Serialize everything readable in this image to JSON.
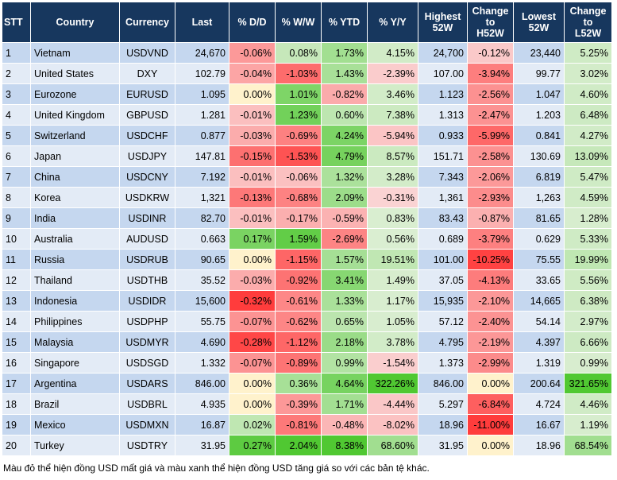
{
  "table": {
    "headers": [
      "STT",
      "Country",
      "Currency",
      "Last",
      "% D/D",
      "% W/W",
      "% YTD",
      "% Y/Y",
      "Highest\n52W",
      "Change\nto\nH52W",
      "Lowest\n52W",
      "Change\nto\nL52W"
    ],
    "rows": [
      [
        "1",
        "Vietnam",
        "USDVND",
        "24,670",
        "-0.06%",
        "0.08%",
        "1.73%",
        "4.15%",
        "24,700",
        "-0.12%",
        "23,440",
        "5.25%"
      ],
      [
        "2",
        "United States",
        "DXY",
        "102.79",
        "-0.04%",
        "-1.03%",
        "1.43%",
        "-2.39%",
        "107.00",
        "-3.94%",
        "99.77",
        "3.02%"
      ],
      [
        "3",
        "Eurozone",
        "EURUSD",
        "1.095",
        "0.00%",
        "1.01%",
        "-0.82%",
        "3.46%",
        "1.123",
        "-2.56%",
        "1.047",
        "4.60%"
      ],
      [
        "4",
        "United Kingdom",
        "GBPUSD",
        "1.281",
        "-0.01%",
        "1.23%",
        "0.60%",
        "7.38%",
        "1.313",
        "-2.47%",
        "1.203",
        "6.48%"
      ],
      [
        "5",
        "Switzerland",
        "USDCHF",
        "0.877",
        "-0.03%",
        "-0.69%",
        "4.24%",
        "-5.94%",
        "0.933",
        "-5.99%",
        "0.841",
        "4.27%"
      ],
      [
        "6",
        "Japan",
        "USDJPY",
        "147.81",
        "-0.15%",
        "-1.53%",
        "4.79%",
        "8.57%",
        "151.71",
        "-2.58%",
        "130.69",
        "13.09%"
      ],
      [
        "7",
        "China",
        "USDCNY",
        "7.192",
        "-0.01%",
        "-0.06%",
        "1.32%",
        "3.28%",
        "7.343",
        "-2.06%",
        "6.819",
        "5.47%"
      ],
      [
        "8",
        "Korea",
        "USDKRW",
        "1,321",
        "-0.13%",
        "-0.68%",
        "2.09%",
        "-0.31%",
        "1,361",
        "-2.93%",
        "1,263",
        "4.59%"
      ],
      [
        "9",
        "India",
        "USDINR",
        "82.70",
        "-0.01%",
        "-0.17%",
        "-0.59%",
        "0.83%",
        "83.43",
        "-0.87%",
        "81.65",
        "1.28%"
      ],
      [
        "10",
        "Australia",
        "AUDUSD",
        "0.663",
        "0.17%",
        "1.59%",
        "-2.69%",
        "0.56%",
        "0.689",
        "-3.79%",
        "0.629",
        "5.33%"
      ],
      [
        "11",
        "Russia",
        "USDRUB",
        "90.65",
        "0.00%",
        "-1.15%",
        "1.57%",
        "19.51%",
        "101.00",
        "-10.25%",
        "75.55",
        "19.99%"
      ],
      [
        "12",
        "Thailand",
        "USDTHB",
        "35.52",
        "-0.03%",
        "-0.92%",
        "3.41%",
        "1.49%",
        "37.05",
        "-4.13%",
        "33.65",
        "5.56%"
      ],
      [
        "13",
        "Indonesia",
        "USDIDR",
        "15,600",
        "-0.32%",
        "-0.61%",
        "1.33%",
        "1.17%",
        "15,935",
        "-2.10%",
        "14,665",
        "6.38%"
      ],
      [
        "14",
        "Philippines",
        "USDPHP",
        "55.75",
        "-0.07%",
        "-0.62%",
        "0.65%",
        "1.05%",
        "57.12",
        "-2.40%",
        "54.14",
        "2.97%"
      ],
      [
        "15",
        "Malaysia",
        "USDMYR",
        "4.690",
        "-0.28%",
        "-1.12%",
        "2.18%",
        "3.78%",
        "4.795",
        "-2.19%",
        "4.397",
        "6.66%"
      ],
      [
        "16",
        "Singapore",
        "USDSGD",
        "1.332",
        "-0.07%",
        "-0.89%",
        "0.99%",
        "-1.54%",
        "1.373",
        "-2.99%",
        "1.319",
        "0.99%"
      ],
      [
        "17",
        "Argentina",
        "USDARS",
        "846.00",
        "0.00%",
        "0.36%",
        "4.64%",
        "322.26%",
        "846.00",
        "0.00%",
        "200.64",
        "321.65%"
      ],
      [
        "18",
        "Brazil",
        "USDBRL",
        "4.935",
        "0.00%",
        "-0.39%",
        "1.71%",
        "-4.44%",
        "5.297",
        "-6.84%",
        "4.724",
        "4.46%"
      ],
      [
        "19",
        "Mexico",
        "USDMXN",
        "16.87",
        "0.02%",
        "-0.81%",
        "-0.48%",
        "-8.02%",
        "18.96",
        "-11.00%",
        "16.67",
        "1.19%"
      ],
      [
        "20",
        "Turkey",
        "USDTRY",
        "31.95",
        "0.27%",
        "2.04%",
        "8.38%",
        "68.60%",
        "31.95",
        "0.00%",
        "18.96",
        "68.54%"
      ]
    ]
  },
  "footnote": "Màu đỏ thể hiện đồng USD mất giá và màu xanh thể hiện đồng USD tăng giá so với các bản tệ khác."
}
